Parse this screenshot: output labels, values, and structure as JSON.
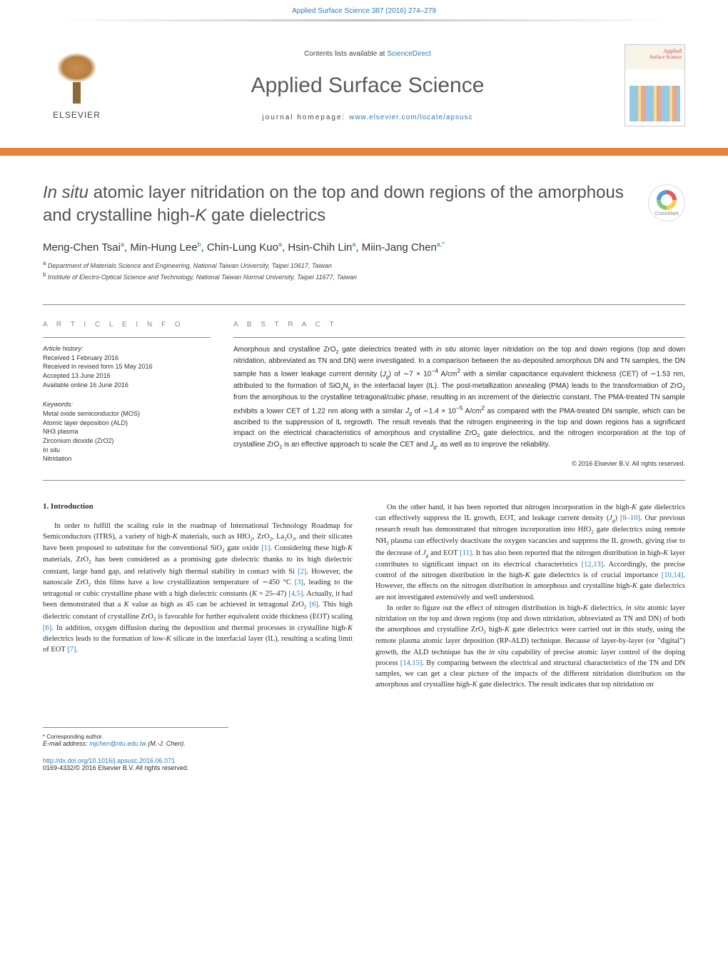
{
  "header": {
    "citation": "Applied Surface Science 387 (2016) 274–279",
    "contents_prefix": "Contents lists available at ",
    "contents_link": "ScienceDirect",
    "journal_title": "Applied Surface Science",
    "homepage_label": "journal homepage: ",
    "homepage_url": "www.elsevier.com/locate/apsusc",
    "publisher": "ELSEVIER",
    "cover_title": "Applied",
    "cover_sub": "Surface Science",
    "crossmark_label": "CrossMark"
  },
  "article": {
    "title_prefix": "In situ",
    "title_rest": " atomic layer nitridation on the top and down regions of the amorphous and crystalline high-",
    "title_k": "K",
    "title_end": " gate dielectrics",
    "authors_html": "Meng-Chen Tsai",
    "authors": [
      {
        "name": "Meng-Chen Tsai",
        "sup": "a"
      },
      {
        "name": "Min-Hung Lee",
        "sup": "b"
      },
      {
        "name": "Chin-Lung Kuo",
        "sup": "a"
      },
      {
        "name": "Hsin-Chih Lin",
        "sup": "a"
      },
      {
        "name": "Miin-Jang Chen",
        "sup": "a,*"
      }
    ],
    "affiliations": [
      {
        "sup": "a",
        "text": "Department of Materials Science and Engineering, National Taiwan University, Taipei 10617, Taiwan"
      },
      {
        "sup": "b",
        "text": "Institute of Electro-Optical Science and Technology, National Taiwan Normal University, Taipei 11677, Taiwan"
      }
    ]
  },
  "info": {
    "article_info_label": "A R T I C L E   I N F O",
    "abstract_label": "A B S T R A C T",
    "history_head": "Article history:",
    "history": [
      "Received 1 February 2016",
      "Received in revised form 15 May 2016",
      "Accepted 13 June 2016",
      "Available online 16 June 2016"
    ],
    "keywords_head": "Keywords:",
    "keywords": [
      "Metal oxide semiconductor (MOS)",
      "Atomic layer deposition (ALD)",
      "NH3 plasma",
      "Zirconium dioxide (ZrO2)",
      "In situ",
      "Nitridation"
    ],
    "abstract": "Amorphous and crystalline ZrO2 gate dielectrics treated with in situ atomic layer nitridation on the top and down regions (top and down nitridation, abbreviated as TN and DN) were investigated. In a comparison between the as-deposited amorphous DN and TN samples, the DN sample has a lower leakage current density (Jg) of ∼7 × 10−4 A/cm2 with a similar capacitance equivalent thickness (CET) of ∼1.53 nm, attributed to the formation of SiOxNy in the interfacial layer (IL). The post-metallization annealing (PMA) leads to the transformation of ZrO2 from the amorphous to the crystalline tetragonal/cubic phase, resulting in an increment of the dielectric constant. The PMA-treated TN sample exhibits a lower CET of 1.22 nm along with a similar Jg of ∼1.4 × 10−5 A/cm2 as compared with the PMA-treated DN sample, which can be ascribed to the suppression of IL regrowth. The result reveals that the nitrogen engineering in the top and down regions has a significant impact on the electrical characteristics of amorphous and crystalline ZrO2 gate dielectrics, and the nitrogen incorporation at the top of crystalline ZrO2 is an effective approach to scale the CET and Jg, as well as to improve the reliability.",
    "copyright": "© 2016 Elsevier B.V. All rights reserved."
  },
  "body": {
    "section1_heading": "1. Introduction",
    "col1_p1": "In order to fulfill the scaling rule in the roadmap of International Technology Roadmap for Semiconductors (ITRS), a variety of high-K materials, such as HfO2, ZrO2, La2O3, and their silicates have been proposed to substitute for the conventional SiO2 gate oxide [1]. Considering these high-K materials, ZrO2 has been considered as a promising gate dielectric thanks to its high dielectric constant, large band gap, and relatively high thermal stability in contact with Si [2]. However, the nanoscale ZrO2 thin films have a low crystallization temperature of ∼450 °C [3], leading to the tetragonal or cubic crystalline phase with a high dielectric constants (K = 25–47) [4,5]. Actually, it had been demonstrated that a K value as high as 45 can be achieved in tetragonal ZrO2 [6]. This high dielectric constant of crystalline ZrO2 is favorable for further equivalent oxide thickness (EOT) scaling [6]. In addition, oxygen diffusion during the deposition and thermal processes in crystalline high-K dielectrics leads to the formation of low-K silicate in the interfacial layer (IL), resulting a scaling limit of EOT [7].",
    "col2_p1": "On the other hand, it has been reported that nitrogen incorporation in the high-K gate dielectrics can effectively suppress the IL growth, EOT, and leakage current density (Jg) [8–10]. Our previous research result has demonstrated that nitrogen incorporation into HfO2 gate dielectrics using remote NH3 plasma can effectively deactivate the oxygen vacancies and suppress the IL growth, giving rise to the decrease of Jg and EOT [11]. It has also been reported that the nitrogen distribution in high-K layer contributes to significant impact on its electrical characteristics [12,13]. Accordingly, the precise control of the nitrogen distribution in the high-K gate dielectrics is of crucial importance [10,14]. However, the effects on the nitrogen distribution in amorphous and crystalline high-K gate dielectrics are not investigated extensively and well understood.",
    "col2_p2": "In order to figure out the effect of nitrogen distribution in high-K dielectrics, in situ atomic layer nitridation on the top and down regions (top and down nitridation, abbreviated as TN and DN) of both the amorphous and crystalline ZrO2 high-K gate dielectrics were carried out in this study, using the remote plasma atomic layer deposition (RP-ALD) technique. Because of layer-by-layer (or \"digital\") growth, the ALD technique has the in situ capability of precise atomic layer control of the doping process [14,15]. By comparing between the electrical and structural characteristics of the TN and DN samples, we can get a clear picture of the impacts of the different nitridation distribution on the amorphous and crystalline high-K gate dielectrics. The result indicates that top nitridation on"
  },
  "footer": {
    "corresponding": "* Corresponding author.",
    "email_label": "E-mail address: ",
    "email": "mjchen@ntu.edu.tw",
    "email_who": " (M.-J. Chen).",
    "doi": "http://dx.doi.org/10.1016/j.apsusc.2016.06.071",
    "issn": "0169-4332/© 2016 Elsevier B.V. All rights reserved."
  },
  "colors": {
    "link": "#2d7bb8",
    "orange_bar": "#e8833a",
    "text": "#2a2a2a",
    "title_gray": "#525252"
  }
}
